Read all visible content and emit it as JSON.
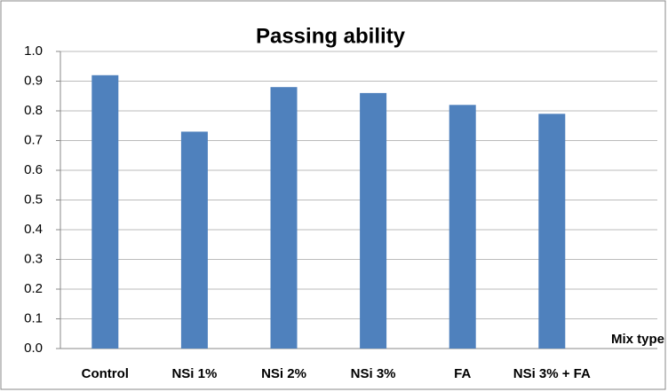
{
  "chart_data": {
    "type": "bar",
    "title": "Passing ability",
    "x_label": "Mix type",
    "categories": [
      "Control",
      "NSi 1%",
      "NSi 2%",
      "NSi 3%",
      "FA",
      "NSi 3% + FA"
    ],
    "values": [
      0.92,
      0.73,
      0.88,
      0.86,
      0.82,
      0.79
    ],
    "color": "#4f81bd",
    "ylim": [
      0,
      1
    ],
    "yticks": [
      {
        "value": 0,
        "label": "0.0"
      },
      0.1,
      0.2,
      0.3,
      0.4,
      0.5,
      0.6,
      0.7,
      0.8,
      0.9,
      {
        "value": 1,
        "label": "1.0"
      }
    ],
    "grid": true
  }
}
